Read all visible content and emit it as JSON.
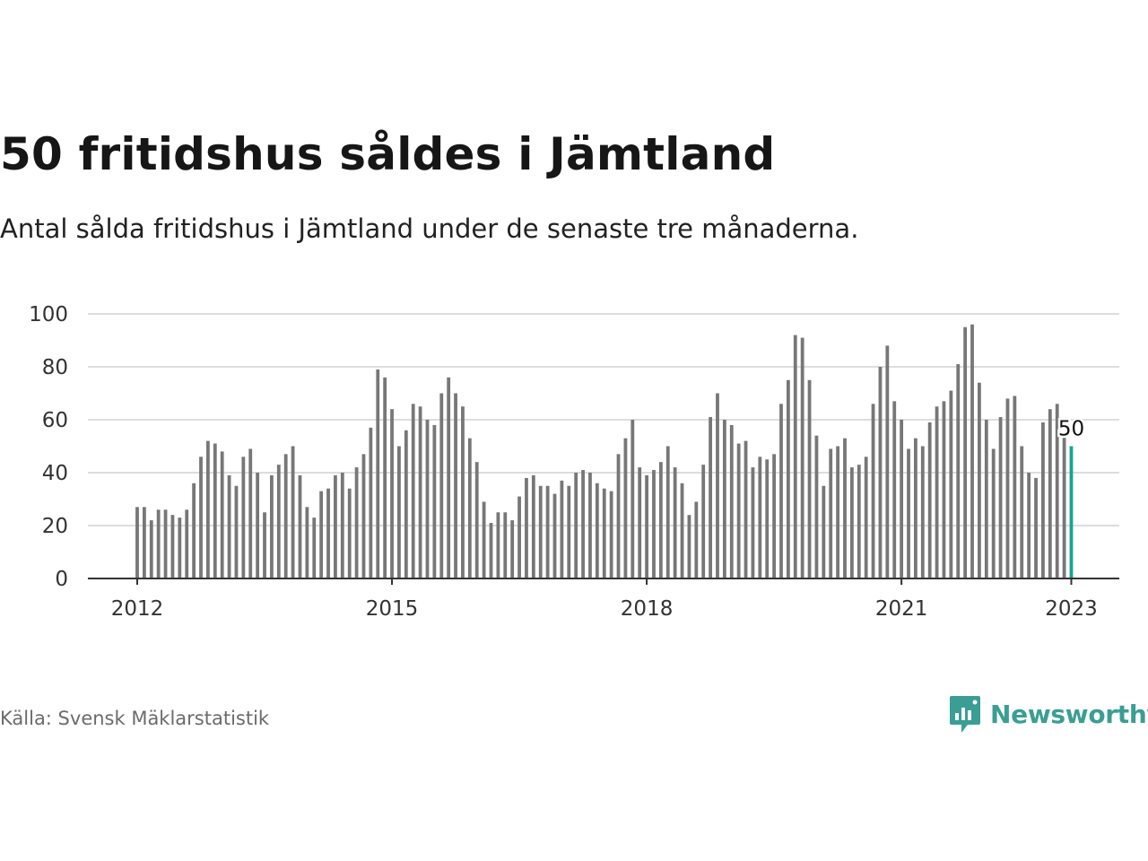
{
  "title": "50 fritidshus såldes i Jämtland",
  "subtitle": "Antal sålda fritidshus i Jämtland under de senaste tre månaderna.",
  "source": "Källa: Svensk Mäklarstatistik",
  "brand": {
    "name": "Newsworthy",
    "color": "#3a9e94",
    "icon": "newsworthy-logo-icon"
  },
  "colors": {
    "bar": "#777777",
    "highlight": "#17a398",
    "grid": "#dddddd",
    "axis": "#333333"
  },
  "chart_data": {
    "type": "bar",
    "title": "50 fritidshus såldes i Jämtland",
    "xlabel": "",
    "ylabel": "",
    "ylim": [
      0,
      100
    ],
    "yticks": [
      0,
      20,
      40,
      60,
      80,
      100
    ],
    "grid": true,
    "xtick_labels": [
      "2012",
      "2015",
      "2018",
      "2021",
      "2023"
    ],
    "x_start": "2012-01",
    "x_end": "2023-01",
    "highlight_label": "50",
    "values": [
      27,
      27,
      22,
      26,
      26,
      24,
      23,
      26,
      36,
      46,
      52,
      51,
      48,
      39,
      35,
      46,
      49,
      40,
      25,
      39,
      43,
      47,
      50,
      39,
      27,
      23,
      33,
      34,
      39,
      40,
      34,
      42,
      47,
      57,
      79,
      76,
      64,
      50,
      56,
      66,
      65,
      60,
      58,
      70,
      76,
      70,
      65,
      53,
      44,
      29,
      21,
      25,
      25,
      22,
      31,
      38,
      39,
      35,
      35,
      32,
      37,
      35,
      40,
      41,
      40,
      36,
      34,
      33,
      47,
      53,
      60,
      42,
      39,
      41,
      44,
      50,
      42,
      36,
      24,
      29,
      43,
      61,
      70,
      60,
      58,
      51,
      52,
      42,
      46,
      45,
      47,
      66,
      75,
      92,
      91,
      75,
      54,
      35,
      49,
      50,
      53,
      42,
      43,
      46,
      66,
      80,
      88,
      67,
      60,
      49,
      53,
      50,
      59,
      65,
      67,
      71,
      81,
      95,
      96,
      74,
      60,
      49,
      61,
      68,
      69,
      50,
      40,
      38,
      59,
      64,
      66,
      54,
      50
    ]
  }
}
